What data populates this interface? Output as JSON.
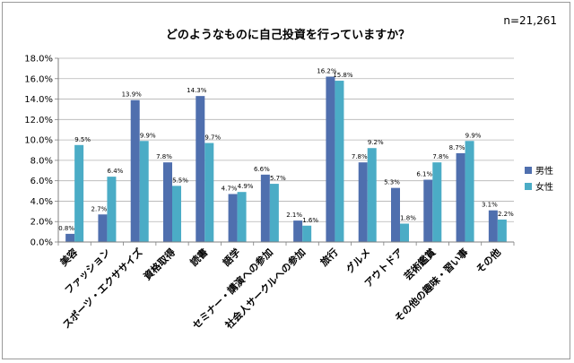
{
  "chart_data": {
    "type": "bar",
    "title": "どのようなものに自己投資を行っていますか？",
    "sample_size": "n=21,261",
    "categories": [
      "美容",
      "ファッション",
      "スポーツ・エクササイズ",
      "資格取得",
      "読書",
      "語学",
      "セミナー・講演への参加",
      "社会人サークルへの参加",
      "旅行",
      "グルメ",
      "アウトドア",
      "芸術鑑賞",
      "その他の趣味・習い事",
      "その他"
    ],
    "series": [
      {
        "name": "男性",
        "color": "#4f6fae",
        "values": [
          0.8,
          2.7,
          13.9,
          7.8,
          14.3,
          4.7,
          6.6,
          2.1,
          16.2,
          7.8,
          5.3,
          6.1,
          8.7,
          3.1
        ],
        "labels": [
          "0.8%",
          "2.7%",
          "13.9%",
          "7.8%",
          "14.3%",
          "4.7%",
          "6.6%",
          "2.1%",
          "16.2%",
          "7.8%",
          "5.3%",
          "6.1%",
          "8.7%",
          "3.1%"
        ]
      },
      {
        "name": "女性",
        "color": "#4bacc6",
        "values": [
          9.5,
          6.4,
          9.9,
          5.5,
          9.7,
          4.9,
          5.7,
          1.6,
          15.8,
          9.2,
          1.8,
          7.8,
          9.9,
          2.2
        ],
        "labels": [
          "9.5%",
          "6.4%",
          "9.9%",
          "5.5%",
          "9.7%",
          "4.9%",
          "5.7%",
          "1.6%",
          "15.8%",
          "9.2%",
          "1.8%",
          "7.8%",
          "9.9%",
          "2.2%"
        ]
      }
    ],
    "ylim": [
      0,
      18
    ],
    "yticks": [
      "0.0%",
      "2.0%",
      "4.0%",
      "6.0%",
      "8.0%",
      "10.0%",
      "12.0%",
      "14.0%",
      "16.0%",
      "18.0%"
    ],
    "grid": true,
    "legend": "right"
  }
}
